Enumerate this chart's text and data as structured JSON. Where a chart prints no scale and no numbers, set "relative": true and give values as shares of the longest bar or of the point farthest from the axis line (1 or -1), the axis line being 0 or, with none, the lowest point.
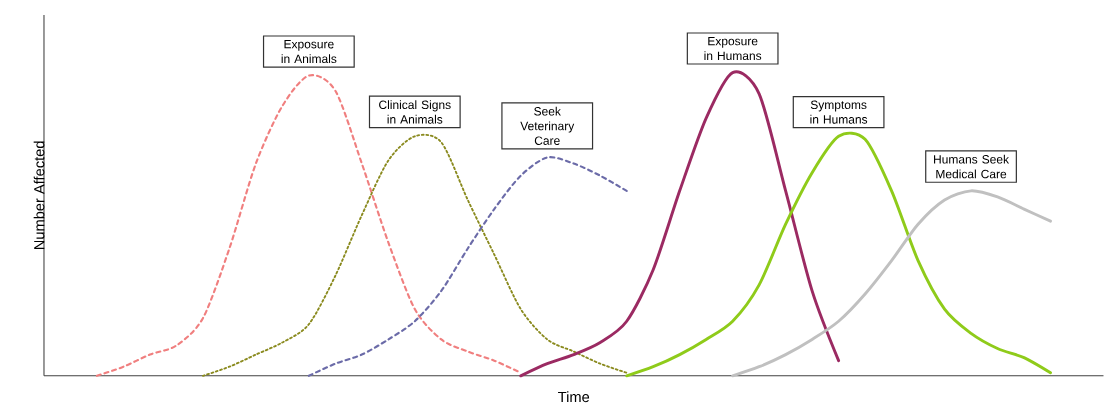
{
  "chart_data": {
    "type": "line",
    "relative": true,
    "xlabel": "Time",
    "ylabel": "Number Affected",
    "categories": [
      null,
      null,
      null,
      null,
      null,
      null,
      null,
      null,
      null,
      null,
      null,
      null,
      null,
      null,
      null,
      null,
      null,
      null,
      null,
      null,
      null,
      null,
      null,
      null,
      null,
      null,
      null,
      null,
      null,
      null,
      null,
      null,
      null,
      null,
      null,
      null,
      null,
      null,
      null,
      null,
      null
    ],
    "series": [
      {
        "color": "#f07f7f",
        "line_style": "dashed",
        "values": [
          null,
          null,
          0,
          0.03,
          0.07,
          0.1,
          0.19,
          0.42,
          0.7,
          0.89,
          0.99,
          0.94,
          0.7,
          0.44,
          0.22,
          0.12,
          0.08,
          0.05,
          0.01,
          null,
          null,
          null,
          null,
          null,
          null,
          null,
          null,
          null,
          null,
          null,
          null,
          null,
          null,
          null,
          null,
          null,
          null,
          null,
          null,
          null,
          null
        ]
      },
      {
        "color": "#8a8a1e",
        "line_style": "dotted",
        "values": [
          null,
          null,
          null,
          null,
          null,
          null,
          0,
          0.03,
          0.07,
          0.11,
          0.17,
          0.33,
          0.53,
          0.71,
          0.79,
          0.77,
          0.58,
          0.4,
          0.22,
          0.12,
          0.08,
          0.04,
          0.01,
          null,
          null,
          null,
          null,
          null,
          null,
          null,
          null,
          null,
          null,
          null,
          null,
          null,
          null,
          null,
          null,
          null,
          null
        ]
      },
      {
        "color": "#6b6ba8",
        "line_style": "dashed",
        "values": [
          null,
          null,
          null,
          null,
          null,
          null,
          null,
          null,
          null,
          null,
          0,
          0.04,
          0.07,
          0.12,
          0.18,
          0.28,
          0.42,
          0.55,
          0.66,
          0.72,
          0.7,
          0.66,
          0.61,
          null,
          null,
          null,
          null,
          null,
          null,
          null,
          null,
          null,
          null,
          null,
          null,
          null,
          null,
          null,
          null,
          null,
          null
        ]
      },
      {
        "color": "#9b2a62",
        "line_style": "solid",
        "values": [
          null,
          null,
          null,
          null,
          null,
          null,
          null,
          null,
          null,
          null,
          null,
          null,
          null,
          null,
          null,
          null,
          null,
          null,
          0,
          0.04,
          0.07,
          0.11,
          0.18,
          0.35,
          0.61,
          0.85,
          1,
          0.93,
          0.61,
          0.28,
          0.05,
          null,
          null,
          null,
          null,
          null,
          null,
          null,
          null,
          null,
          null
        ]
      },
      {
        "color": "#8fcb1a",
        "line_style": "solid",
        "values": [
          null,
          null,
          null,
          null,
          null,
          null,
          null,
          null,
          null,
          null,
          null,
          null,
          null,
          null,
          null,
          null,
          null,
          null,
          null,
          null,
          null,
          null,
          0,
          0.03,
          0.07,
          0.12,
          0.18,
          0.3,
          0.5,
          0.67,
          0.79,
          0.78,
          0.61,
          0.38,
          0.22,
          0.14,
          0.09,
          0.06,
          0.01,
          null,
          null
        ]
      },
      {
        "color": "#c0c0c0",
        "line_style": "solid",
        "values": [
          null,
          null,
          null,
          null,
          null,
          null,
          null,
          null,
          null,
          null,
          null,
          null,
          null,
          null,
          null,
          null,
          null,
          null,
          null,
          null,
          null,
          null,
          null,
          null,
          null,
          null,
          0,
          0.03,
          0.07,
          0.12,
          0.18,
          0.27,
          0.38,
          0.5,
          0.58,
          0.61,
          0.59,
          0.55,
          0.51,
          null,
          null
        ]
      }
    ],
    "annotations": [
      "Exposure in Animals",
      "Clinical Signs in Animals",
      "Seek Veterinary Care",
      "Exposure in Humans",
      "Symptoms in Humans",
      "Humans Seek Medical Care"
    ]
  }
}
